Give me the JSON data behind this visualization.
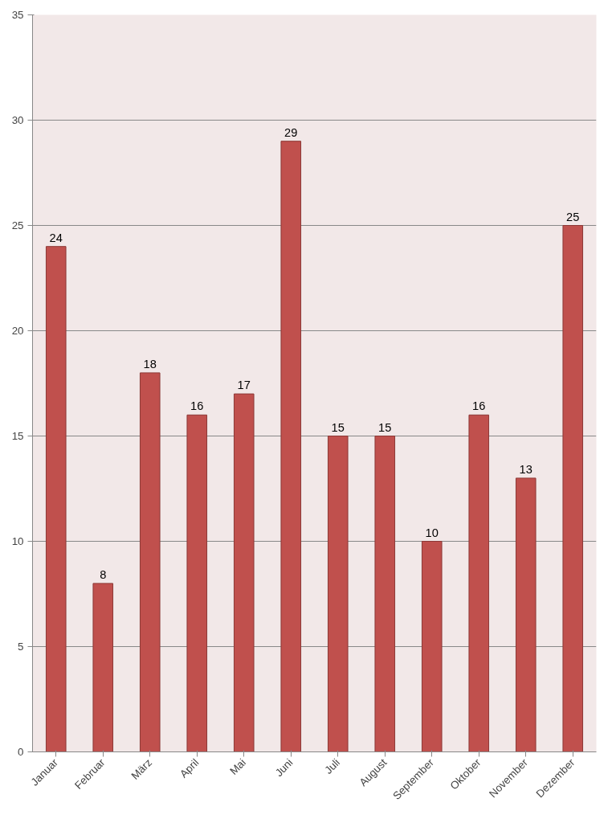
{
  "chart_data": {
    "type": "bar",
    "categories": [
      "Januar",
      "Februar",
      "März",
      "April",
      "Mai",
      "Juni",
      "Juli",
      "August",
      "September",
      "Oktober",
      "November",
      "Dezember"
    ],
    "values": [
      24,
      8,
      18,
      16,
      17,
      29,
      15,
      15,
      10,
      16,
      13,
      25
    ],
    "color": "#c0504d",
    "ylim": [
      0,
      35
    ],
    "yticks": [
      0,
      5,
      10,
      15,
      20,
      25,
      30,
      35
    ],
    "grid": "y",
    "data_labels": true
  }
}
